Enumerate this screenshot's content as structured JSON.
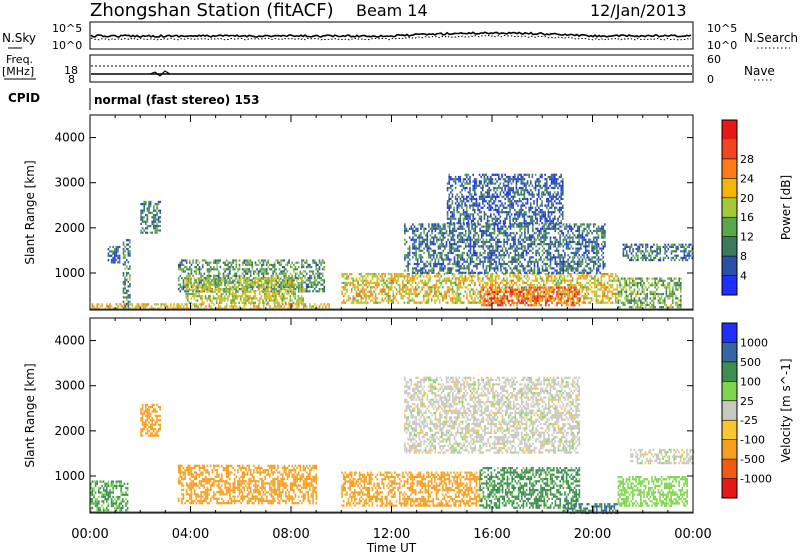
{
  "header": {
    "station": "Zhongshan Station (fitACF)",
    "beam": "Beam 14",
    "date": "12/Jan/2013"
  },
  "noise_panel": {
    "left_label": "N.Sky",
    "right_label": "N.Search",
    "left_ticks": [
      "10^5",
      "10^0"
    ],
    "right_ticks": [
      "10^5",
      "10^0"
    ]
  },
  "freq_panel": {
    "left_label_1": "Freq.",
    "left_label_2": "[MHz]",
    "right_label": "Nave",
    "left_ticks": [
      "18",
      "8"
    ],
    "right_ticks": [
      "60",
      "0"
    ]
  },
  "cpid": {
    "label": "CPID",
    "mode": "normal (fast stereo) 153"
  },
  "time_axis": {
    "title": "Time UT",
    "ticks": [
      "00:00",
      "04:00",
      "08:00",
      "12:00",
      "16:00",
      "20:00",
      "00:00"
    ]
  },
  "colors": {
    "power_scale": [
      "#1f2fff",
      "#2a4fa8",
      "#3d7a5c",
      "#5aa64a",
      "#a6c93a",
      "#f5b40a",
      "#ff7a14",
      "#f0451e",
      "#e81818"
    ],
    "velocity_scale": [
      "#e81818",
      "#f05a14",
      "#f5a020",
      "#f9c632",
      "#c8c8c0",
      "#7ed64b",
      "#3c8f4c",
      "#3764a4",
      "#1f2fff"
    ]
  },
  "chart_data": [
    {
      "type": "heatmap",
      "name": "power",
      "xlabel": "Time UT",
      "ylabel": "Slant Range [km]",
      "ylim": [
        180,
        4500
      ],
      "xlim": [
        0,
        24
      ],
      "x_ticks": [
        "00:00",
        "04:00",
        "08:00",
        "12:00",
        "16:00",
        "20:00",
        "00:00"
      ],
      "y_ticks": [
        1000,
        2000,
        3000,
        4000
      ],
      "colorbar": {
        "label": "Power [dB]",
        "ticks": [
          4,
          8,
          12,
          16,
          20,
          24,
          28
        ],
        "range": [
          0,
          30
        ]
      },
      "regions": [
        {
          "t0": 0.7,
          "t1": 1.2,
          "r0": 1250,
          "r1": 1600,
          "dB": 6
        },
        {
          "t0": 0.0,
          "t1": 9.5,
          "r0": 200,
          "r1": 330,
          "dB": 18
        },
        {
          "t0": 1.3,
          "t1": 1.6,
          "r0": 180,
          "r1": 1750,
          "dB": 9
        },
        {
          "t0": 2.0,
          "t1": 2.8,
          "r0": 1900,
          "r1": 2600,
          "dB": 8
        },
        {
          "t0": 3.5,
          "t1": 9.3,
          "r0": 600,
          "r1": 1300,
          "dB": 10
        },
        {
          "t0": 3.8,
          "t1": 8.5,
          "r0": 350,
          "r1": 900,
          "dB": 15
        },
        {
          "t0": 10.0,
          "t1": 21.0,
          "r0": 350,
          "r1": 1000,
          "dB": 17
        },
        {
          "t0": 12.5,
          "t1": 20.5,
          "r0": 1000,
          "r1": 2100,
          "dB": 7
        },
        {
          "t0": 14.2,
          "t1": 18.8,
          "r0": 2100,
          "r1": 3200,
          "dB": 6
        },
        {
          "t0": 15.5,
          "t1": 19.5,
          "r0": 300,
          "r1": 700,
          "dB": 24
        },
        {
          "t0": 21.2,
          "t1": 24.0,
          "r0": 1300,
          "r1": 1650,
          "dB": 7
        },
        {
          "t0": 21.0,
          "t1": 23.5,
          "r0": 250,
          "r1": 900,
          "dB": 12
        }
      ]
    },
    {
      "type": "heatmap",
      "name": "velocity",
      "xlabel": "Time UT",
      "ylabel": "Slant Range [km]",
      "ylim": [
        180,
        4500
      ],
      "xlim": [
        0,
        24
      ],
      "x_ticks": [
        "00:00",
        "04:00",
        "08:00",
        "12:00",
        "16:00",
        "20:00",
        "00:00"
      ],
      "y_ticks": [
        1000,
        2000,
        3000,
        4000
      ],
      "colorbar": {
        "label": "Velocity [m s^-1]",
        "ticks": [
          "1000",
          "500",
          "100",
          "25",
          "-25",
          "-100",
          "-500",
          "-1000"
        ]
      },
      "regions": [
        {
          "t0": 0.0,
          "t1": 1.5,
          "r0": 180,
          "r1": 900,
          "v": 120
        },
        {
          "t0": 2.0,
          "t1": 2.8,
          "r0": 1900,
          "r1": 2600,
          "v": -300
        },
        {
          "t0": 3.5,
          "t1": 9.0,
          "r0": 400,
          "r1": 1250,
          "v": -300
        },
        {
          "t0": 10.0,
          "t1": 15.5,
          "r0": 350,
          "r1": 1100,
          "v": -300
        },
        {
          "t0": 12.5,
          "t1": 19.5,
          "r0": 1500,
          "r1": 3200,
          "v": 0
        },
        {
          "t0": 15.5,
          "t1": 19.5,
          "r0": 300,
          "r1": 1200,
          "v": 150
        },
        {
          "t0": 18.8,
          "t1": 21.0,
          "r0": 200,
          "r1": 400,
          "v": 500
        },
        {
          "t0": 21.0,
          "t1": 23.8,
          "r0": 350,
          "r1": 1000,
          "v": 60
        },
        {
          "t0": 21.5,
          "t1": 24.0,
          "r0": 1300,
          "r1": 1600,
          "v": 0
        }
      ]
    }
  ]
}
